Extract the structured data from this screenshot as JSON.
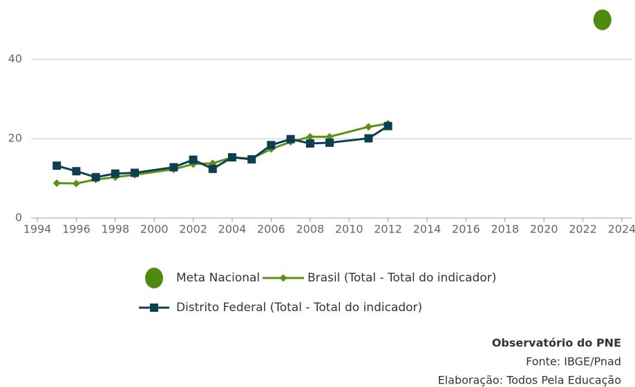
{
  "chart_data": {
    "type": "line",
    "xlim": [
      1994,
      2024
    ],
    "xticks": [
      1994,
      1996,
      1998,
      2000,
      2002,
      2004,
      2006,
      2008,
      2010,
      2012,
      2014,
      2016,
      2018,
      2020,
      2022,
      2024
    ],
    "ylim": [
      0,
      55
    ],
    "yticks": [
      0,
      20,
      40
    ],
    "grid": true,
    "series": [
      {
        "name": "Meta Nacional",
        "color": "#4f8a10",
        "type": "scatter",
        "marker": "circle",
        "x": [
          2023
        ],
        "values": [
          50
        ]
      },
      {
        "name": "Brasil (Total - Total do indicador)",
        "color": "#5b9214",
        "type": "line",
        "marker": "diamond",
        "x": [
          1995,
          1996,
          1997,
          1998,
          1999,
          2001,
          2002,
          2003,
          2004,
          2005,
          2006,
          2007,
          2008,
          2009,
          2011,
          2012
        ],
        "values": [
          8.8,
          8.7,
          9.7,
          10.3,
          10.9,
          12.3,
          13.6,
          13.8,
          15.3,
          15.0,
          17.4,
          19.2,
          20.5,
          20.5,
          23.0,
          23.8
        ]
      },
      {
        "name": "Distrito Federal (Total - Total do indicador)",
        "color": "#0d3f4f",
        "type": "line",
        "marker": "square",
        "x": [
          1995,
          1996,
          1997,
          1998,
          1999,
          2001,
          2002,
          2003,
          2004,
          2005,
          2006,
          2007,
          2008,
          2009,
          2011,
          2012
        ],
        "values": [
          13.2,
          11.8,
          10.3,
          11.2,
          11.4,
          12.8,
          14.7,
          12.4,
          15.3,
          14.8,
          18.4,
          19.9,
          18.8,
          19.0,
          20.1,
          23.2
        ]
      }
    ],
    "footer": [
      "Observatório do PNE",
      "Fonte: IBGE/Pnad",
      "Elaboração: Todos Pela Educação"
    ]
  }
}
